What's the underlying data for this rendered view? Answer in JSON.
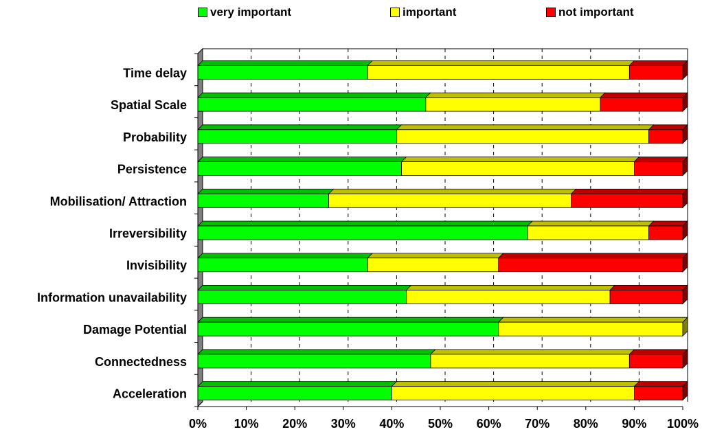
{
  "chart_data": {
    "type": "bar",
    "orientation": "horizontal",
    "stacked": "percent",
    "categories": [
      "Time delay",
      "Spatial Scale",
      "Probability",
      "Persistence",
      "Mobilisation/ Attraction",
      "Irreversibility",
      "Invisibility",
      "Information unavailability",
      "Damage Potential",
      "Connectedness",
      "Acceleration"
    ],
    "series": [
      {
        "name": "very important",
        "color": "#00ff00",
        "values": [
          35,
          47,
          41,
          42,
          27,
          68,
          35,
          43,
          62,
          48,
          40
        ]
      },
      {
        "name": "important",
        "color": "#ffff00",
        "values": [
          54,
          36,
          52,
          48,
          50,
          25,
          27,
          42,
          38,
          41,
          50
        ]
      },
      {
        "name": "not important",
        "color": "#ff0000",
        "values": [
          11,
          17,
          7,
          10,
          23,
          7,
          38,
          15,
          0,
          11,
          10
        ]
      }
    ],
    "xlim": [
      0,
      100
    ],
    "x_ticks": [
      "0%",
      "10%",
      "20%",
      "30%",
      "40%",
      "50%",
      "60%",
      "70%",
      "80%",
      "90%",
      "100%"
    ],
    "grid": "vertical dashed",
    "legend_position": "top",
    "style": "3d"
  }
}
